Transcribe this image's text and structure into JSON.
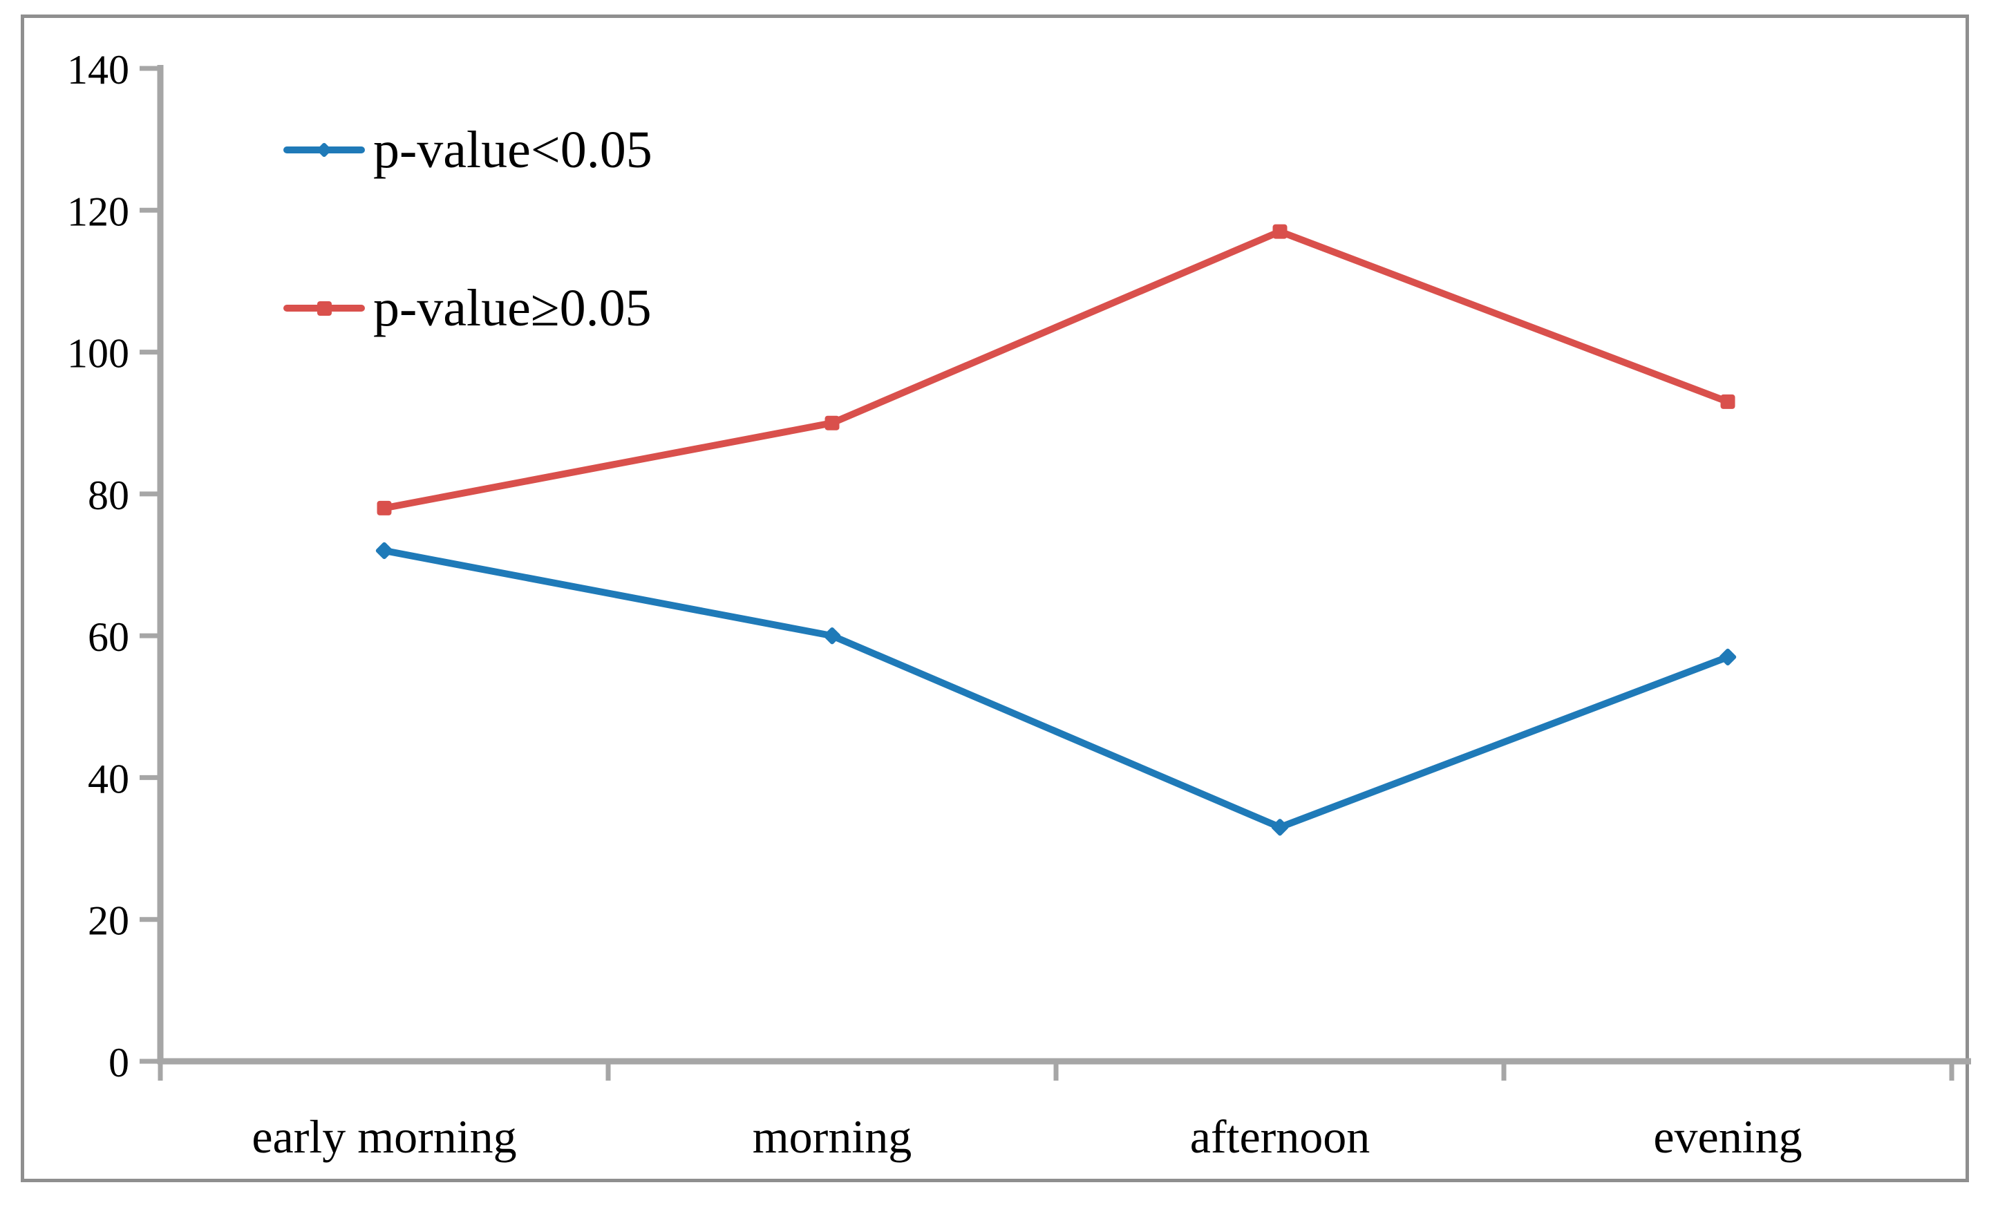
{
  "chart_data": {
    "type": "line",
    "title": "",
    "xlabel": "",
    "ylabel": "",
    "categories": [
      "early morning",
      "morning",
      "afternoon",
      "evening"
    ],
    "series": [
      {
        "name": "p-value<0.05",
        "values": [
          72,
          60,
          33,
          57
        ],
        "color": "#1F7AB8",
        "marker": "diamond"
      },
      {
        "name": "p-value≥0.05",
        "values": [
          78,
          90,
          117,
          93
        ],
        "color": "#D9504C",
        "marker": "square"
      }
    ],
    "ylim": [
      0,
      140
    ],
    "yticks": [
      0,
      20,
      40,
      60,
      80,
      100,
      120,
      140
    ],
    "grid": false,
    "legend_position": "top-left",
    "colors": {
      "axis": "#A6A6A6",
      "text": "#000000",
      "frame": "#8F8F8F",
      "background": "#FFFFFF"
    }
  }
}
